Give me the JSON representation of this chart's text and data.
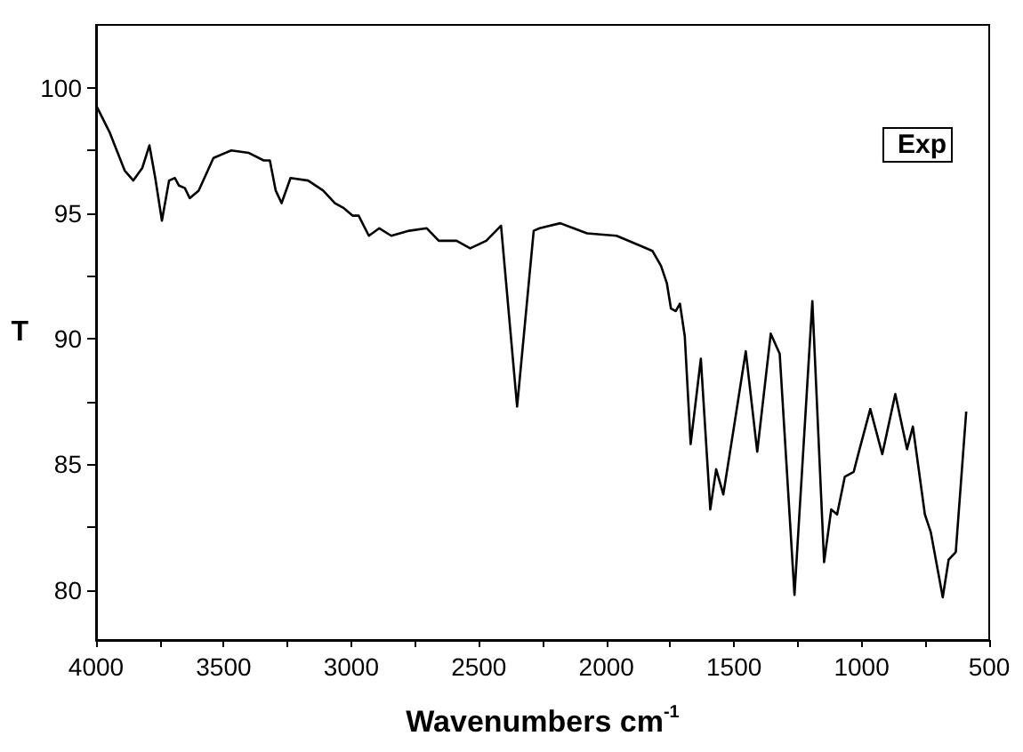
{
  "chart_data": {
    "type": "line",
    "xlabel": "Wavenumbers cm$^{-1}$",
    "ylabel": "T",
    "x": [
      4000,
      3946,
      3888,
      3854,
      3819,
      3791,
      3768,
      3742,
      3714,
      3691,
      3675,
      3652,
      3633,
      3598,
      3540,
      3470,
      3401,
      3343,
      3319,
      3296,
      3273,
      3238,
      3169,
      3110,
      3064,
      3029,
      2994,
      2971,
      2931,
      2890,
      2843,
      2773,
      2704,
      2657,
      2587,
      2534,
      2471,
      2413,
      2350,
      2285,
      2262,
      2181,
      2076,
      1960,
      1867,
      1820,
      1786,
      1763,
      1747,
      1728,
      1712,
      1693,
      1670,
      1630,
      1593,
      1570,
      1542,
      1500,
      1454,
      1409,
      1356,
      1321,
      1263,
      1193,
      1147,
      1119,
      1096,
      1066,
      1031,
      1008,
      966,
      919,
      868,
      822,
      799,
      787,
      752,
      729,
      682,
      659,
      631,
      590
    ],
    "series": [
      {
        "name": "Exp",
        "color": "#000000",
        "values": [
          99.3,
          98.2,
          96.7,
          96.3,
          96.8,
          97.7,
          96.4,
          94.7,
          96.3,
          96.4,
          96.1,
          96.0,
          95.6,
          95.9,
          97.2,
          97.5,
          97.4,
          97.1,
          97.1,
          95.9,
          95.4,
          96.4,
          96.3,
          95.9,
          95.4,
          95.2,
          94.9,
          94.9,
          94.1,
          94.4,
          94.1,
          94.3,
          94.4,
          93.9,
          93.9,
          93.6,
          93.9,
          94.5,
          87.3,
          94.3,
          94.4,
          94.6,
          94.2,
          94.1,
          93.7,
          93.5,
          92.9,
          92.2,
          91.2,
          91.1,
          91.4,
          90.1,
          85.8,
          89.2,
          83.2,
          84.8,
          83.8,
          86.5,
          89.5,
          85.5,
          90.2,
          89.4,
          79.8,
          91.5,
          81.1,
          83.2,
          83.0,
          84.5,
          84.7,
          85.6,
          87.2,
          85.4,
          87.8,
          85.6,
          86.5,
          85.6,
          83.0,
          82.3,
          79.7,
          81.2,
          81.5,
          87.1
        ]
      }
    ],
    "xlim": [
      4000,
      500
    ],
    "xticks": [
      4000,
      {
        "value": 3750,
        "label": null
      },
      3500,
      {
        "value": 3250,
        "label": null
      },
      3000,
      {
        "value": 2750,
        "label": null
      },
      2500,
      {
        "value": 2250,
        "label": null
      },
      2000,
      {
        "value": 1750,
        "label": null
      },
      1500,
      {
        "value": 1250,
        "label": null
      },
      1000,
      {
        "value": 750,
        "label": null
      },
      500
    ],
    "ylim": [
      78,
      102.5
    ],
    "yticks": [
      80,
      {
        "value": 82.5,
        "label": null
      },
      85,
      {
        "value": 87.5,
        "label": null
      },
      90,
      {
        "value": 92.5,
        "label": null
      },
      95,
      {
        "value": 97.5,
        "label": null
      },
      100
    ],
    "legend": "top right",
    "grid": false,
    "marker": "none",
    "line_style": "solid"
  }
}
